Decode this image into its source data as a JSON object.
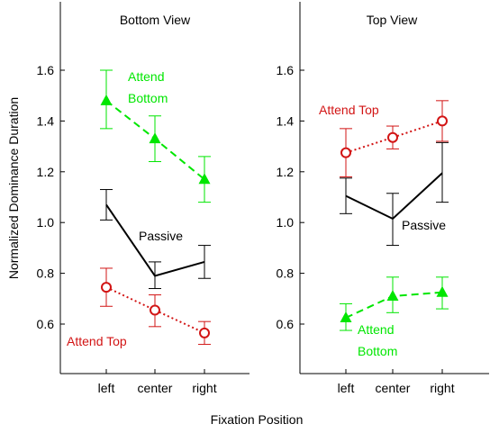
{
  "figure": {
    "ylabel": "Normalized Dominance Duration",
    "xlabel": "Fixation Position"
  },
  "chart_data": [
    {
      "type": "line",
      "title": "Bottom View",
      "categories": [
        "left",
        "center",
        "right"
      ],
      "ylim": [
        0.5,
        1.8
      ],
      "yticks": [
        "0.6",
        "0.8",
        "1.0",
        "1.2",
        "1.4",
        "1.6"
      ],
      "series": [
        {
          "name": "Attend Bottom",
          "label_lines": [
            "Attend",
            "Bottom"
          ],
          "color": "#00e600",
          "style": "dashed",
          "marker": "triangle",
          "values": [
            1.48,
            1.33,
            1.17
          ],
          "err": [
            [
              1.37,
              1.6
            ],
            [
              1.24,
              1.42
            ],
            [
              1.08,
              1.26
            ]
          ]
        },
        {
          "name": "Passive",
          "label_lines": [
            "Passive"
          ],
          "color": "#000000",
          "style": "solid",
          "marker": "none",
          "values": [
            1.07,
            0.79,
            0.845
          ],
          "err": [
            [
              1.01,
              1.13
            ],
            [
              0.74,
              0.845
            ],
            [
              0.78,
              0.91
            ]
          ]
        },
        {
          "name": "Attend Top",
          "label_lines": [
            "Attend Top"
          ],
          "color": "#d21414",
          "style": "dotted",
          "marker": "circle",
          "values": [
            0.745,
            0.655,
            0.565
          ],
          "err": [
            [
              0.67,
              0.82
            ],
            [
              0.59,
              0.715
            ],
            [
              0.52,
              0.61
            ]
          ]
        }
      ]
    },
    {
      "type": "line",
      "title": "Top View",
      "categories": [
        "left",
        "center",
        "right"
      ],
      "ylim": [
        0.5,
        1.8
      ],
      "yticks": [
        "0.6",
        "0.8",
        "1.0",
        "1.2",
        "1.4",
        "1.6"
      ],
      "series": [
        {
          "name": "Attend Top",
          "label_lines": [
            "Attend Top"
          ],
          "color": "#d21414",
          "style": "dotted",
          "marker": "circle",
          "values": [
            1.275,
            1.335,
            1.4
          ],
          "err": [
            [
              1.18,
              1.37
            ],
            [
              1.29,
              1.38
            ],
            [
              1.32,
              1.48
            ]
          ]
        },
        {
          "name": "Passive",
          "label_lines": [
            "Passive"
          ],
          "color": "#000000",
          "style": "solid",
          "marker": "none",
          "values": [
            1.105,
            1.015,
            1.195
          ],
          "err": [
            [
              1.035,
              1.175
            ],
            [
              0.91,
              1.115
            ],
            [
              1.08,
              1.315
            ]
          ]
        },
        {
          "name": "Attend Bottom",
          "label_lines": [
            "Attend",
            "Bottom"
          ],
          "color": "#00e600",
          "style": "dashed",
          "marker": "triangle",
          "values": [
            0.625,
            0.71,
            0.725
          ],
          "err": [
            [
              0.575,
              0.68
            ],
            [
              0.645,
              0.785
            ],
            [
              0.66,
              0.785
            ]
          ]
        }
      ]
    }
  ]
}
